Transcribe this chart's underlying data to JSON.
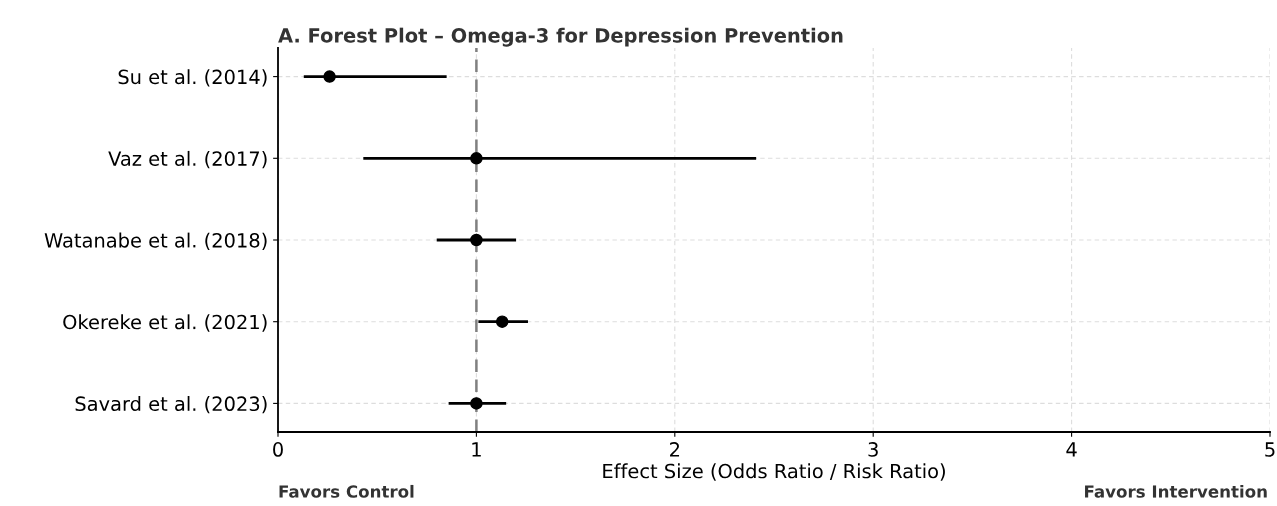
{
  "chart_data": {
    "type": "scatter",
    "title": "A. Forest Plot – Omega-3 for Depression Prevention",
    "xlabel": "Effect Size (Odds Ratio / Risk Ratio)",
    "orientation": "horizontal",
    "categories": [
      "Su et al. (2014)",
      "Vaz et al. (2017)",
      "Watanabe et al. (2018)",
      "Okereke et al. (2021)",
      "Savard et al. (2023)"
    ],
    "values": [
      0.26,
      1.0,
      1.0,
      1.13,
      1.0
    ],
    "errors": [
      [
        0.13,
        0.85
      ],
      [
        0.43,
        2.41
      ],
      [
        0.8,
        1.2
      ],
      [
        1.01,
        1.26
      ],
      [
        0.86,
        1.15
      ]
    ],
    "color": "#000000",
    "marker": "circle",
    "xlim": [
      0,
      5
    ],
    "xticks": [
      0,
      1,
      2,
      3,
      4,
      5
    ],
    "ref_lines": [
      {
        "axis": "x",
        "value": 1,
        "color": "#808080",
        "line_style": "dashed"
      }
    ],
    "grid": true,
    "annotations": [
      "Favors Control",
      "Favors Intervention"
    ]
  }
}
